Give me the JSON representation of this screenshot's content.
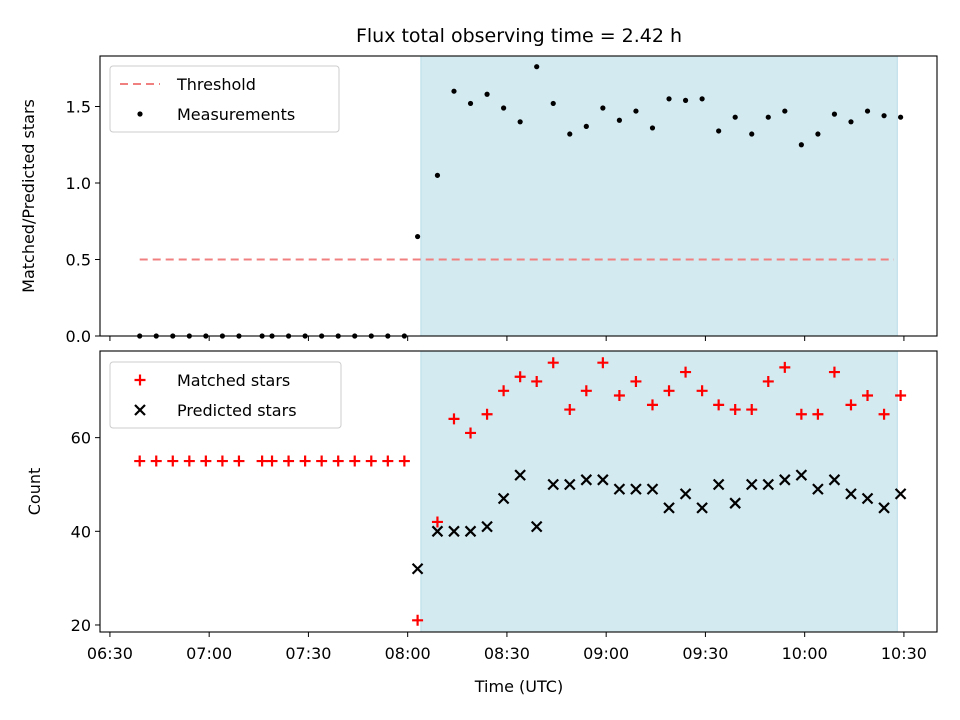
{
  "chart_data": {
    "type": "scatter",
    "title": "Flux total observing time = 2.42 h",
    "xlabel": "Time (UTC)",
    "x_ticks": [
      "06:30",
      "07:00",
      "07:30",
      "08:00",
      "08:30",
      "09:00",
      "09:30",
      "10:00",
      "10:30"
    ],
    "xlim": [
      "06:27",
      "10:40"
    ],
    "shaded_region": {
      "start": "08:04",
      "end": "10:28",
      "color": "#d4eaf1"
    },
    "colors": {
      "threshold": "#f08080",
      "measurements": "#000000",
      "matched": "#ff0000",
      "predicted": "#000000"
    },
    "panels": [
      {
        "ylabel": "Matched/Predicted stars",
        "ylim": [
          0,
          1.83
        ],
        "y_ticks": [
          "0.0",
          "0.5",
          "1.0",
          "1.5"
        ],
        "legend": {
          "position": "top-left",
          "entries": [
            "Threshold",
            "Measurements"
          ]
        },
        "series": [
          {
            "name": "Threshold",
            "type": "line",
            "style": "dashed",
            "x": [
              "06:39",
              "10:27"
            ],
            "y": [
              0.5,
              0.5
            ]
          },
          {
            "name": "Measurements",
            "type": "scatter",
            "x": [
              "06:39",
              "06:44",
              "06:49",
              "06:54",
              "06:59",
              "07:04",
              "07:09",
              "07:16",
              "07:19",
              "07:24",
              "07:29",
              "07:34",
              "07:39",
              "07:44",
              "07:49",
              "07:54",
              "07:59",
              "08:03",
              "08:09",
              "08:14",
              "08:19",
              "08:24",
              "08:29",
              "08:34",
              "08:39",
              "08:44",
              "08:49",
              "08:54",
              "08:59",
              "09:04",
              "09:09",
              "09:14",
              "09:19",
              "09:24",
              "09:29",
              "09:34",
              "09:39",
              "09:44",
              "09:49",
              "09:54",
              "09:59",
              "10:04",
              "10:09",
              "10:14",
              "10:19",
              "10:24",
              "10:29"
            ],
            "y": [
              0,
              0,
              0,
              0,
              0,
              0,
              0,
              0,
              0,
              0,
              0,
              0,
              0,
              0,
              0,
              0,
              0,
              0.65,
              1.05,
              1.6,
              1.52,
              1.58,
              1.49,
              1.4,
              1.76,
              1.52,
              1.32,
              1.37,
              1.49,
              1.41,
              1.47,
              1.36,
              1.55,
              1.54,
              1.55,
              1.34,
              1.43,
              1.32,
              1.43,
              1.47,
              1.25,
              1.32,
              1.45,
              1.4,
              1.47,
              1.44,
              1.43
            ]
          }
        ]
      },
      {
        "ylabel": "Count",
        "ylim": [
          18.5,
          78.5
        ],
        "y_ticks": [
          "20",
          "40",
          "60"
        ],
        "legend": {
          "position": "top-left",
          "entries": [
            "Matched stars",
            "Predicted stars"
          ]
        },
        "series": [
          {
            "name": "Matched stars",
            "type": "scatter",
            "marker": "plus",
            "x": [
              "06:39",
              "06:44",
              "06:49",
              "06:54",
              "06:59",
              "07:04",
              "07:09",
              "07:16",
              "07:19",
              "07:24",
              "07:29",
              "07:34",
              "07:39",
              "07:44",
              "07:49",
              "07:54",
              "07:59",
              "08:03",
              "08:09",
              "08:14",
              "08:19",
              "08:24",
              "08:29",
              "08:34",
              "08:39",
              "08:44",
              "08:49",
              "08:54",
              "08:59",
              "09:04",
              "09:09",
              "09:14",
              "09:19",
              "09:24",
              "09:29",
              "09:34",
              "09:39",
              "09:44",
              "09:49",
              "09:54",
              "09:59",
              "10:04",
              "10:09",
              "10:14",
              "10:19",
              "10:24",
              "10:29"
            ],
            "y": [
              55,
              55,
              55,
              55,
              55,
              55,
              55,
              55,
              55,
              55,
              55,
              55,
              55,
              55,
              55,
              55,
              55,
              21,
              42,
              64,
              61,
              65,
              70,
              73,
              72,
              76,
              66,
              70,
              76,
              69,
              72,
              67,
              70,
              74,
              70,
              67,
              66,
              66,
              72,
              75,
              65,
              65,
              74,
              67,
              69,
              65,
              69
            ]
          },
          {
            "name": "Predicted stars",
            "type": "scatter",
            "marker": "x",
            "x": [
              "08:03",
              "08:09",
              "08:14",
              "08:19",
              "08:24",
              "08:29",
              "08:34",
              "08:39",
              "08:44",
              "08:49",
              "08:54",
              "08:59",
              "09:04",
              "09:09",
              "09:14",
              "09:19",
              "09:24",
              "09:29",
              "09:34",
              "09:39",
              "09:44",
              "09:49",
              "09:54",
              "09:59",
              "10:04",
              "10:09",
              "10:14",
              "10:19",
              "10:24",
              "10:29"
            ],
            "y": [
              32,
              40,
              40,
              40,
              41,
              47,
              52,
              41,
              50,
              50,
              51,
              51,
              49,
              49,
              49,
              45,
              48,
              45,
              50,
              46,
              50,
              50,
              51,
              52,
              49,
              51,
              48,
              47,
              45,
              48
            ]
          }
        ]
      }
    ]
  }
}
